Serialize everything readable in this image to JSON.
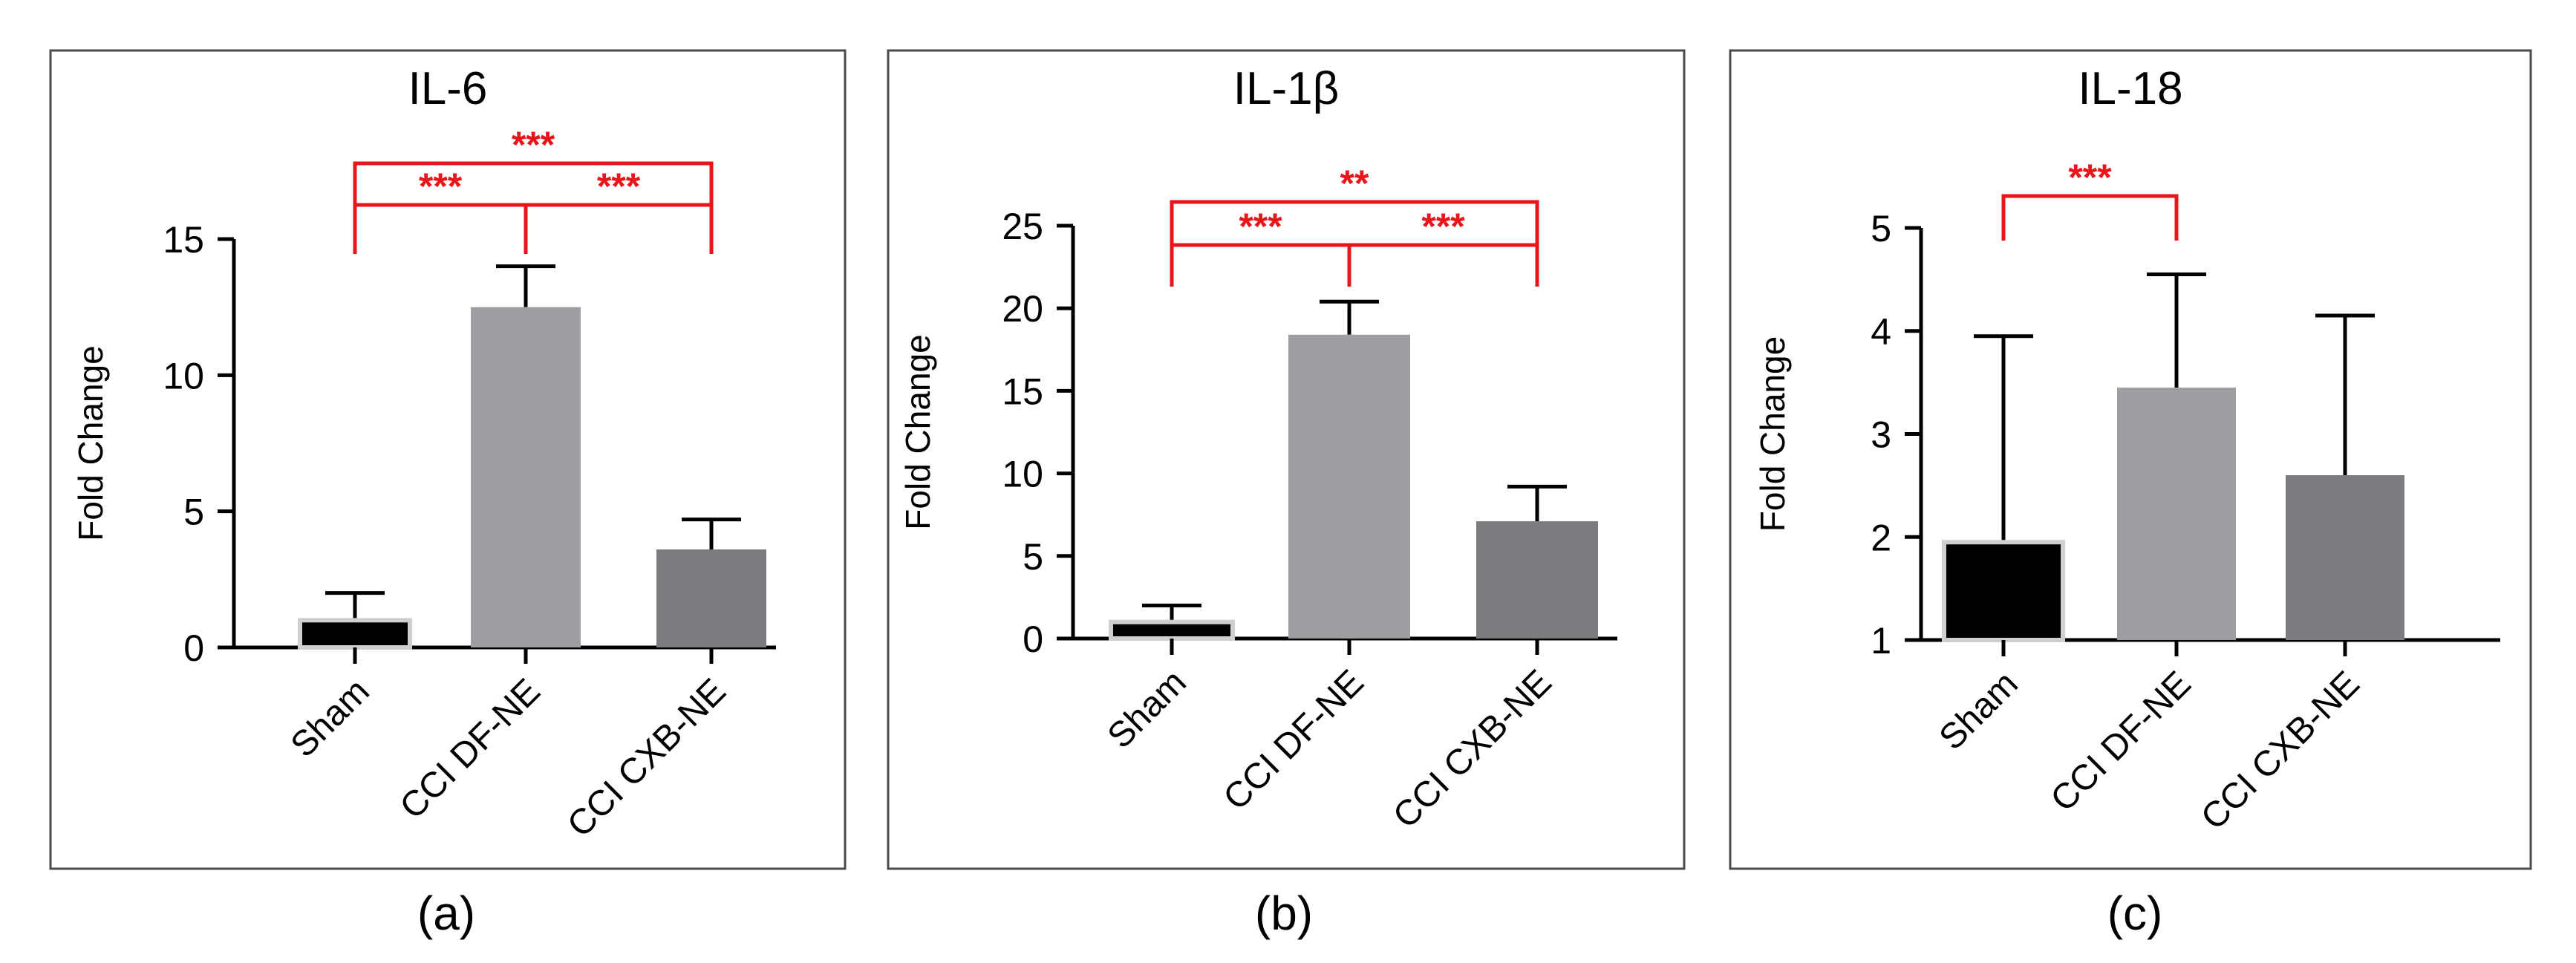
{
  "figure": {
    "panel_labels": [
      "(a)",
      "(b)",
      "(c)"
    ]
  },
  "colors": {
    "sham": "#000000",
    "df": "#9d9ea1",
    "cxb": "#7b7c7f",
    "significance": "#e8161b",
    "axis": "#000000",
    "frame": "#4a4a4a"
  },
  "chart_data": [
    {
      "type": "bar",
      "title": "IL-6",
      "panel_label": "(a)",
      "ylabel": "Fold Change",
      "xlabel": "",
      "categories": [
        "Sham",
        "CCI  DF-NE",
        "CCI  CXB-NE"
      ],
      "values": [
        1,
        12.5,
        3.6
      ],
      "error_upper": [
        2.0,
        14.0,
        4.7
      ],
      "ylim": [
        0,
        15
      ],
      "yticks": [
        0,
        5,
        10,
        15
      ],
      "significance": [
        {
          "from": 0,
          "to": 1,
          "label": "***",
          "level": 1
        },
        {
          "from": 1,
          "to": 2,
          "label": "***",
          "level": 1
        },
        {
          "from": 0,
          "to": 2,
          "label": "***",
          "level": 2
        }
      ]
    },
    {
      "type": "bar",
      "title": "IL-1β",
      "panel_label": "(b)",
      "ylabel": "Fold Change",
      "xlabel": "",
      "categories": [
        "Sham",
        "CCI  DF-NE",
        "CCI  CXB-NE"
      ],
      "values": [
        1,
        18.4,
        7.1
      ],
      "error_upper": [
        2.0,
        20.4,
        9.2
      ],
      "ylim": [
        0,
        25
      ],
      "yticks": [
        0,
        5,
        10,
        15,
        20,
        25
      ],
      "significance": [
        {
          "from": 0,
          "to": 1,
          "label": "***",
          "level": 1
        },
        {
          "from": 1,
          "to": 2,
          "label": "***",
          "level": 1
        },
        {
          "from": 0,
          "to": 2,
          "label": "**",
          "level": 2
        }
      ]
    },
    {
      "type": "bar",
      "title": "IL-18",
      "panel_label": "(c)",
      "ylabel": "Fold Change",
      "xlabel": "",
      "categories": [
        "Sham",
        "CCI  DF-NE",
        "CCI  CXB-NE"
      ],
      "values": [
        1.95,
        3.45,
        2.6
      ],
      "error_upper": [
        3.95,
        4.55,
        4.15
      ],
      "ylim": [
        1,
        5
      ],
      "yticks": [
        1,
        2,
        3,
        4,
        5
      ],
      "significance": [
        {
          "from": 0,
          "to": 1,
          "label": "***",
          "level": 1
        }
      ]
    }
  ]
}
